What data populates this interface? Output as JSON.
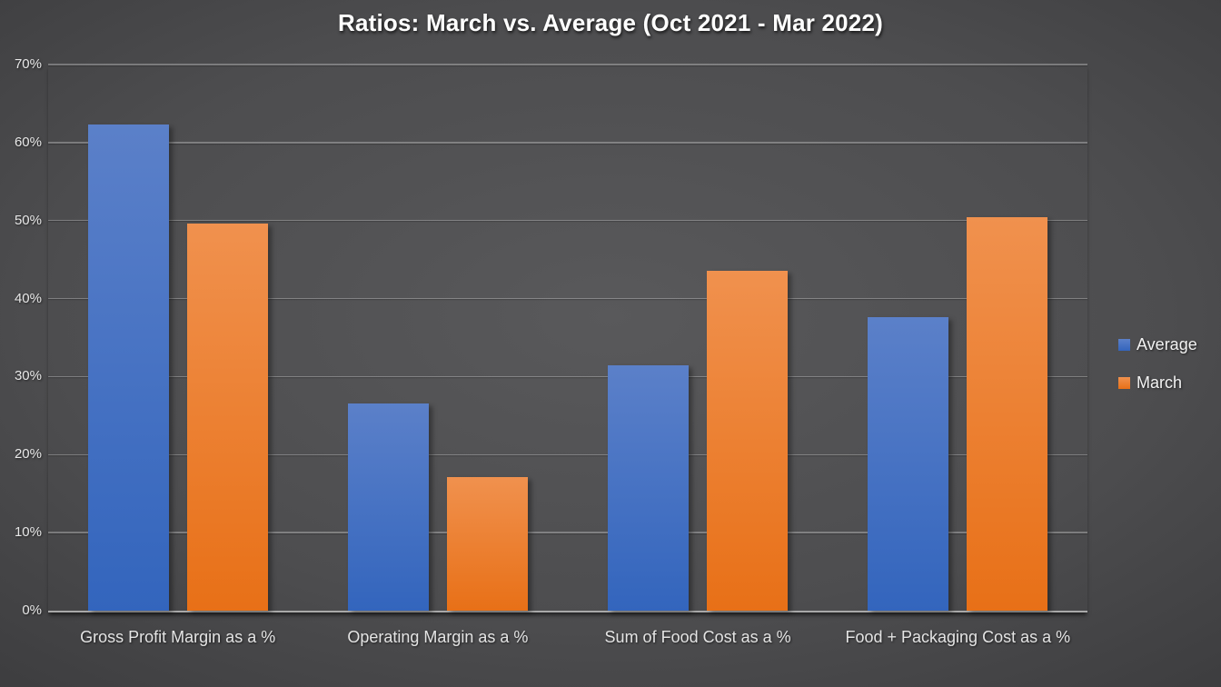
{
  "chart_data": {
    "type": "bar",
    "title": "Ratios: March vs. Average (Oct 2021 - Mar 2022)",
    "categories": [
      "Gross Profit Margin as a %",
      "Operating Margin as a %",
      "Sum of Food Cost as a %",
      "Food + Packaging Cost as a %"
    ],
    "series": [
      {
        "name": "Average",
        "values": [
          62.3,
          26.5,
          31.5,
          37.6
        ],
        "color_top": "#5B80C9",
        "color_bottom": "#3365BD"
      },
      {
        "name": "March",
        "values": [
          49.6,
          17.1,
          43.6,
          50.4
        ],
        "color_top": "#F0914E",
        "color_bottom": "#E87017"
      }
    ],
    "ylim": [
      0,
      70
    ],
    "yticks": [
      0,
      10,
      20,
      30,
      40,
      50,
      60,
      70
    ],
    "ytick_suffix": "%",
    "grid": true,
    "legend_position": "right",
    "colors": {
      "background_center": "#59595B",
      "background_edge": "#2B2B2B",
      "gridline": "rgba(255,255,255,0.28)",
      "axis_line": "#A9A9A9",
      "title_text": "#FFFFFF",
      "label_text": "#E4E4E4"
    }
  }
}
